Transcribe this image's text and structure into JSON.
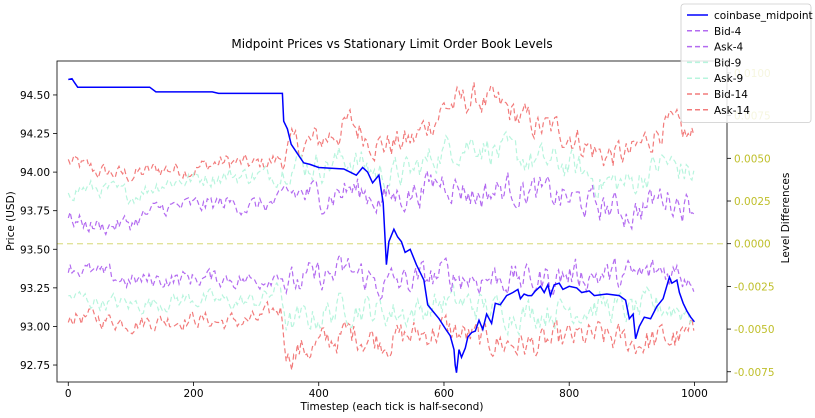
{
  "chart_data": {
    "type": "line",
    "title": "Midpoint Prices vs Stationary Limit Order Book Levels",
    "xlabel": "Timestep (each tick is half-second)",
    "ylabel": "Price (USD)",
    "ylabel_right": "Level Differences",
    "xlim": [
      -18,
      1052
    ],
    "ylim": [
      92.64,
      94.72
    ],
    "ylim_right": [
      -0.0081,
      0.0107
    ],
    "x_ticks": [
      0,
      200,
      400,
      600,
      800,
      1000
    ],
    "y_ticks": [
      92.75,
      93.0,
      93.25,
      93.5,
      93.75,
      94.0,
      94.25,
      94.5
    ],
    "y_ticks_right": [
      -0.0075,
      -0.005,
      -0.0025,
      0.0,
      0.0025,
      0.005,
      0.0075,
      0.01
    ],
    "grid": false,
    "legend_position": "top-right",
    "colors": {
      "midpoint": "#0000ff",
      "level4": "#b36bf0",
      "level9": "#b8f5de",
      "level14": "#f27b7b",
      "right_axis": "#bfbf2a",
      "zero_line": "#e1e39a"
    },
    "series": [
      {
        "name": "coinbase_midpoint",
        "axis": "left",
        "style": "solid",
        "color": "#0000ff",
        "points": [
          [
            0,
            94.6
          ],
          [
            6,
            94.605
          ],
          [
            10,
            94.58
          ],
          [
            15,
            94.55
          ],
          [
            130,
            94.55
          ],
          [
            140,
            94.52
          ],
          [
            230,
            94.52
          ],
          [
            240,
            94.51
          ],
          [
            342,
            94.51
          ],
          [
            344,
            94.33
          ],
          [
            350,
            94.28
          ],
          [
            356,
            94.18
          ],
          [
            366,
            94.12
          ],
          [
            376,
            94.06
          ],
          [
            386,
            94.05
          ],
          [
            400,
            94.03
          ],
          [
            440,
            94.02
          ],
          [
            460,
            93.98
          ],
          [
            470,
            94.03
          ],
          [
            478,
            94.0
          ],
          [
            486,
            93.93
          ],
          [
            496,
            93.98
          ],
          [
            503,
            93.8
          ],
          [
            508,
            93.4
          ],
          [
            512,
            93.55
          ],
          [
            520,
            93.63
          ],
          [
            526,
            93.58
          ],
          [
            532,
            93.55
          ],
          [
            538,
            93.48
          ],
          [
            546,
            93.5
          ],
          [
            556,
            93.4
          ],
          [
            568,
            93.3
          ],
          [
            574,
            93.14
          ],
          [
            582,
            93.1
          ],
          [
            592,
            93.05
          ],
          [
            603,
            92.98
          ],
          [
            610,
            92.94
          ],
          [
            616,
            92.85
          ],
          [
            618,
            92.75
          ],
          [
            620,
            92.7
          ],
          [
            624,
            92.85
          ],
          [
            628,
            92.8
          ],
          [
            634,
            92.86
          ],
          [
            638,
            92.93
          ],
          [
            644,
            92.96
          ],
          [
            650,
            92.97
          ],
          [
            656,
            93.04
          ],
          [
            662,
            92.98
          ],
          [
            668,
            93.08
          ],
          [
            672,
            93.05
          ],
          [
            676,
            93.02
          ],
          [
            682,
            93.15
          ],
          [
            690,
            93.14
          ],
          [
            700,
            93.2
          ],
          [
            710,
            93.22
          ],
          [
            718,
            93.24
          ],
          [
            722,
            93.18
          ],
          [
            728,
            93.21
          ],
          [
            734,
            93.2
          ],
          [
            740,
            93.2
          ],
          [
            746,
            93.23
          ],
          [
            754,
            93.26
          ],
          [
            760,
            93.22
          ],
          [
            766,
            93.27
          ],
          [
            770,
            93.2
          ],
          [
            776,
            93.27
          ],
          [
            784,
            93.28
          ],
          [
            790,
            93.24
          ],
          [
            800,
            93.26
          ],
          [
            812,
            93.25
          ],
          [
            820,
            93.22
          ],
          [
            832,
            93.23
          ],
          [
            840,
            93.2
          ],
          [
            860,
            93.21
          ],
          [
            880,
            93.2
          ],
          [
            890,
            93.17
          ],
          [
            896,
            93.05
          ],
          [
            902,
            93.08
          ],
          [
            906,
            92.92
          ],
          [
            912,
            93.0
          ],
          [
            920,
            93.06
          ],
          [
            930,
            93.05
          ],
          [
            940,
            93.13
          ],
          [
            950,
            93.18
          ],
          [
            960,
            93.32
          ],
          [
            964,
            93.28
          ],
          [
            972,
            93.3
          ],
          [
            976,
            93.22
          ],
          [
            982,
            93.15
          ],
          [
            988,
            93.1
          ],
          [
            994,
            93.06
          ],
          [
            1000,
            93.03
          ]
        ]
      },
      {
        "name": "Bid-4",
        "axis": "right",
        "style": "dashed",
        "color": "#b36bf0"
      },
      {
        "name": "Ask-4",
        "axis": "right",
        "style": "dashed",
        "color": "#b36bf0"
      },
      {
        "name": "Bid-9",
        "axis": "right",
        "style": "dashed",
        "color": "#b8f5de"
      },
      {
        "name": "Ask-9",
        "axis": "right",
        "style": "dashed",
        "color": "#b8f5de"
      },
      {
        "name": "Bid-14",
        "axis": "right",
        "style": "dashed",
        "color": "#f27b7b"
      },
      {
        "name": "Ask-14",
        "axis": "right",
        "style": "dashed",
        "color": "#f27b7b"
      }
    ],
    "level_bands": {
      "x": [
        0,
        50,
        100,
        150,
        200,
        250,
        300,
        340,
        350,
        400,
        450,
        500,
        550,
        600,
        650,
        700,
        750,
        800,
        850,
        900,
        950,
        1000
      ],
      "Bid-4": [
        0.0014,
        0.001,
        0.0012,
        0.0021,
        0.0022,
        0.0024,
        0.0022,
        0.0024,
        0.003,
        0.0028,
        0.0032,
        0.0026,
        0.003,
        0.0038,
        0.0028,
        0.0033,
        0.003,
        0.0026,
        0.0022,
        0.0018,
        0.0028,
        0.0022
      ],
      "Ask-4": [
        -0.0013,
        -0.0018,
        -0.0022,
        -0.0021,
        -0.002,
        -0.002,
        -0.0022,
        -0.0016,
        -0.0025,
        -0.002,
        -0.0016,
        -0.0024,
        -0.0022,
        -0.0018,
        -0.002,
        -0.002,
        -0.0022,
        -0.0018,
        -0.0018,
        -0.002,
        -0.0016,
        -0.0018
      ],
      "Bid-9": [
        0.0032,
        0.0032,
        0.0028,
        0.0036,
        0.0038,
        0.004,
        0.004,
        0.004,
        0.0048,
        0.0046,
        0.005,
        0.004,
        0.0042,
        0.0055,
        0.006,
        0.0052,
        0.0048,
        0.0046,
        0.0036,
        0.0035,
        0.0048,
        0.004
      ],
      "Ask-9": [
        -0.0031,
        -0.0034,
        -0.0036,
        -0.0034,
        -0.0032,
        -0.0034,
        -0.0034,
        -0.0026,
        -0.0048,
        -0.0042,
        -0.0036,
        -0.004,
        -0.004,
        -0.0034,
        -0.0036,
        -0.004,
        -0.004,
        -0.0038,
        -0.0036,
        -0.004,
        -0.0036,
        -0.004
      ],
      "Bid-14": [
        0.0048,
        0.0042,
        0.004,
        0.0044,
        0.0044,
        0.0048,
        0.0046,
        0.005,
        0.0055,
        0.006,
        0.007,
        0.0058,
        0.006,
        0.008,
        0.0085,
        0.0078,
        0.0068,
        0.0065,
        0.0052,
        0.0052,
        0.007,
        0.006
      ],
      "Ask-14": [
        -0.0042,
        -0.0044,
        -0.0046,
        -0.0045,
        -0.0044,
        -0.0046,
        -0.0045,
        -0.0038,
        -0.0064,
        -0.006,
        -0.0052,
        -0.0056,
        -0.0054,
        -0.005,
        -0.0056,
        -0.0058,
        -0.006,
        -0.0056,
        -0.0055,
        -0.0058,
        -0.0056,
        -0.0055
      ]
    }
  }
}
